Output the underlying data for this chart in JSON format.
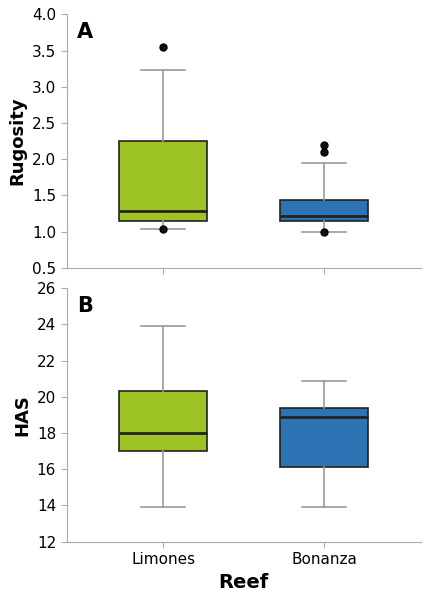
{
  "panel_A": {
    "label": "A",
    "ylabel": "Rugosity",
    "ylim": [
      0.5,
      4.0
    ],
    "yticks": [
      0.5,
      1.0,
      1.5,
      2.0,
      2.5,
      3.0,
      3.5,
      4.0
    ],
    "limones": {
      "q1": 1.15,
      "median": 1.28,
      "q3": 2.25,
      "whislo": 1.04,
      "whishi": 3.23,
      "fliers": [
        3.55,
        1.04
      ]
    },
    "bonanza": {
      "q1": 1.15,
      "median": 1.22,
      "q3": 1.43,
      "whislo": 1.0,
      "whishi": 1.95,
      "fliers": [
        1.0,
        2.1,
        2.2
      ]
    }
  },
  "panel_B": {
    "label": "B",
    "ylabel": "HAS",
    "ylim": [
      12,
      26
    ],
    "yticks": [
      12,
      14,
      16,
      18,
      20,
      22,
      24,
      26
    ],
    "limones": {
      "q1": 17.0,
      "median": 18.0,
      "q3": 20.3,
      "whislo": 13.9,
      "whishi": 23.9,
      "fliers": []
    },
    "bonanza": {
      "q1": 16.1,
      "median": 18.9,
      "q3": 19.4,
      "whislo": 13.9,
      "whishi": 20.9,
      "fliers": []
    }
  },
  "categories": [
    "Limones",
    "Bonanza"
  ],
  "xlabel": "Reef",
  "color_limones": "#9DC324",
  "color_bonanza": "#2E74B5",
  "box_linecolor": "#222222",
  "flier_color": "#111111",
  "whisker_color": "#999999",
  "cap_color": "#999999",
  "bg_color": "#ffffff",
  "label_fontsize": 13,
  "tick_fontsize": 11,
  "xlabel_fontsize": 14,
  "panel_label_fontsize": 15
}
